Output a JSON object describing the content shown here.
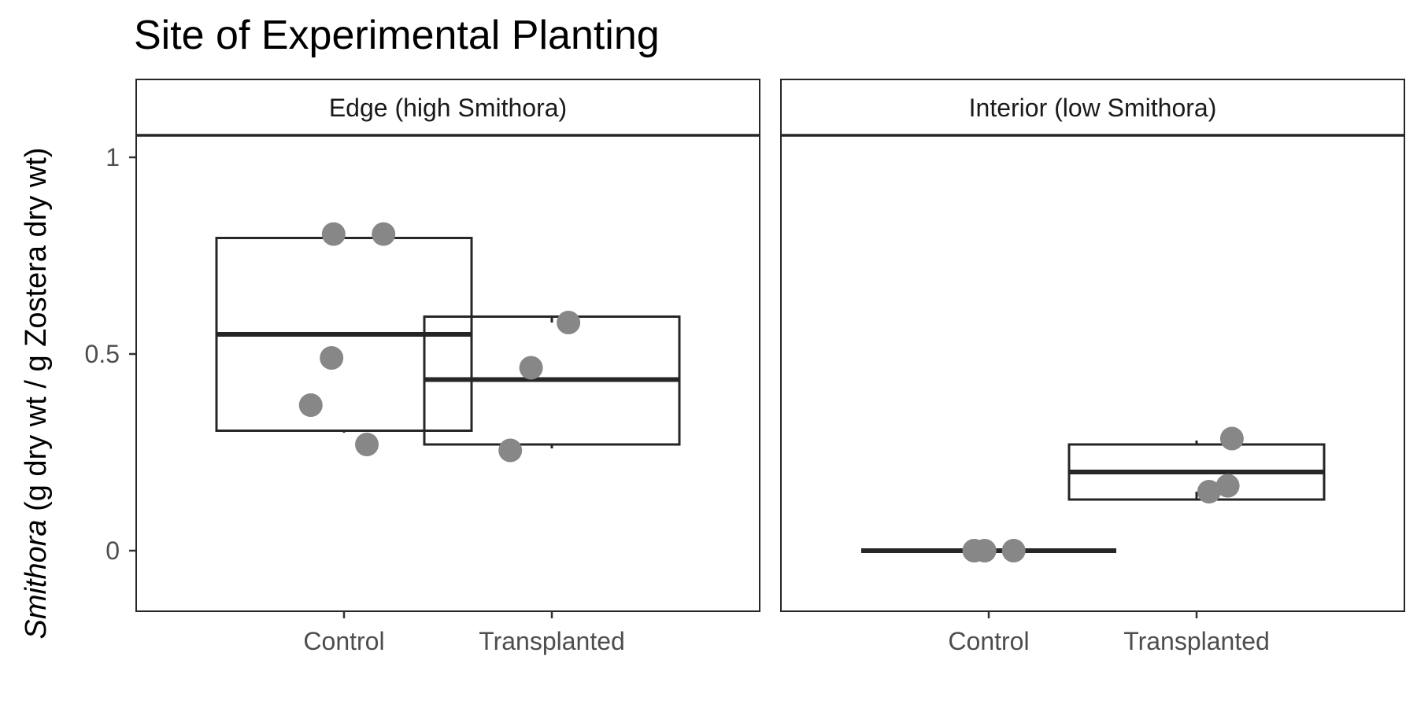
{
  "chart_data": {
    "type": "boxplot",
    "title": "Site of Experimental Planting",
    "ylabel_italic": "Smithora",
    "ylabel_rest": " (g dry wt / g Zostera dry wt)",
    "ylim": [
      -0.15,
      1.2
    ],
    "yticks": [
      0,
      0.5,
      1
    ],
    "ytick_labels": [
      "0",
      "0.5",
      "1"
    ],
    "categories": [
      "Control",
      "Transplanted"
    ],
    "grid": false,
    "colors": {
      "box_line": "#262626",
      "point": "#878787",
      "frame": "#262626"
    },
    "panels": [
      {
        "label": "Edge (high Smithora)",
        "groups": [
          {
            "category": "Control",
            "box": {
              "lower": 0.3,
              "q1": 0.305,
              "median": 0.55,
              "q3": 0.795,
              "upper": 0.8
            },
            "points": [
              {
                "jitter": -0.05,
                "y": 0.805
              },
              {
                "jitter": 0.19,
                "y": 0.805
              },
              {
                "jitter": -0.06,
                "y": 0.49
              },
              {
                "jitter": -0.16,
                "y": 0.37
              },
              {
                "jitter": 0.11,
                "y": 0.27
              }
            ]
          },
          {
            "category": "Transplanted",
            "box": {
              "lower": 0.26,
              "q1": 0.27,
              "median": 0.435,
              "q3": 0.595,
              "upper": 0.58
            },
            "points": [
              {
                "jitter": 0.08,
                "y": 0.58
              },
              {
                "jitter": -0.1,
                "y": 0.465
              },
              {
                "jitter": -0.2,
                "y": 0.255
              }
            ]
          }
        ]
      },
      {
        "label": "Interior (low Smithora)",
        "groups": [
          {
            "category": "Control",
            "box": {
              "lower": 0,
              "q1": 0,
              "median": 0,
              "q3": 0,
              "upper": 0
            },
            "points": [
              {
                "jitter": -0.07,
                "y": 0
              },
              {
                "jitter": -0.02,
                "y": 0
              },
              {
                "jitter": 0.12,
                "y": 0
              }
            ]
          },
          {
            "category": "Transplanted",
            "box": {
              "lower": 0.15,
              "q1": 0.13,
              "median": 0.2,
              "q3": 0.27,
              "upper": 0.28
            },
            "points": [
              {
                "jitter": 0.17,
                "y": 0.285
              },
              {
                "jitter": 0.15,
                "y": 0.165
              },
              {
                "jitter": 0.06,
                "y": 0.15
              }
            ]
          }
        ]
      }
    ]
  }
}
